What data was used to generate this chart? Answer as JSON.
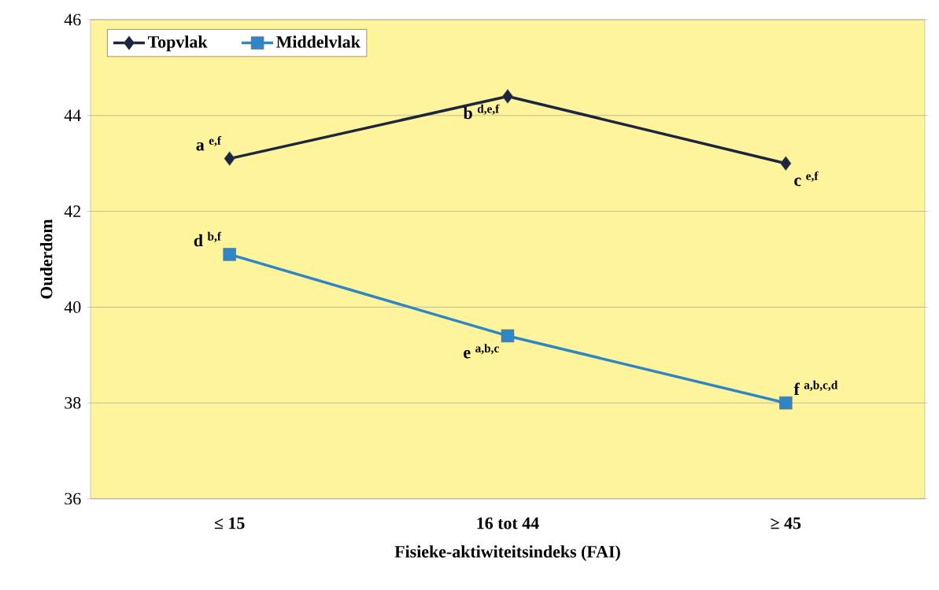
{
  "chart_data": {
    "type": "line",
    "xlabel": "Fisieke-aktiwiteitsindeks (FAI)",
    "ylabel": "Ouderdom",
    "categories": [
      "≤ 15",
      "16 tot 44",
      "≥ 45"
    ],
    "series": [
      {
        "name": "Topvlak",
        "color": "#1c2640",
        "marker": "diamond",
        "values": [
          43.1,
          44.4,
          43.0
        ]
      },
      {
        "name": "Middelvlak",
        "color": "#2f86c6",
        "marker": "square",
        "values": [
          41.1,
          39.4,
          38.0
        ]
      }
    ],
    "ylim": [
      36,
      46
    ],
    "yticks": [
      36,
      38,
      40,
      42,
      44,
      46
    ],
    "grid": "y",
    "legend": "top left",
    "annotations": [
      {
        "text": "a $^{e,f}$",
        "x": "≤ 15",
        "y": 43.1
      },
      {
        "text": "b $^{d,e,f}$",
        "x": "16 tot 44",
        "y": 44.4
      },
      {
        "text": "c $^{e,f}$",
        "x": "≥ 45",
        "y": 43.0
      },
      {
        "text": "d $^{b,f}$",
        "x": "≤ 15",
        "y": 41.1
      },
      {
        "text": "e $^{a,b,c}$",
        "x": "16 tot 44",
        "y": 39.4
      },
      {
        "text": "f $^{a,b,c,d}$",
        "x": "≥ 45",
        "y": 38.0
      }
    ]
  }
}
